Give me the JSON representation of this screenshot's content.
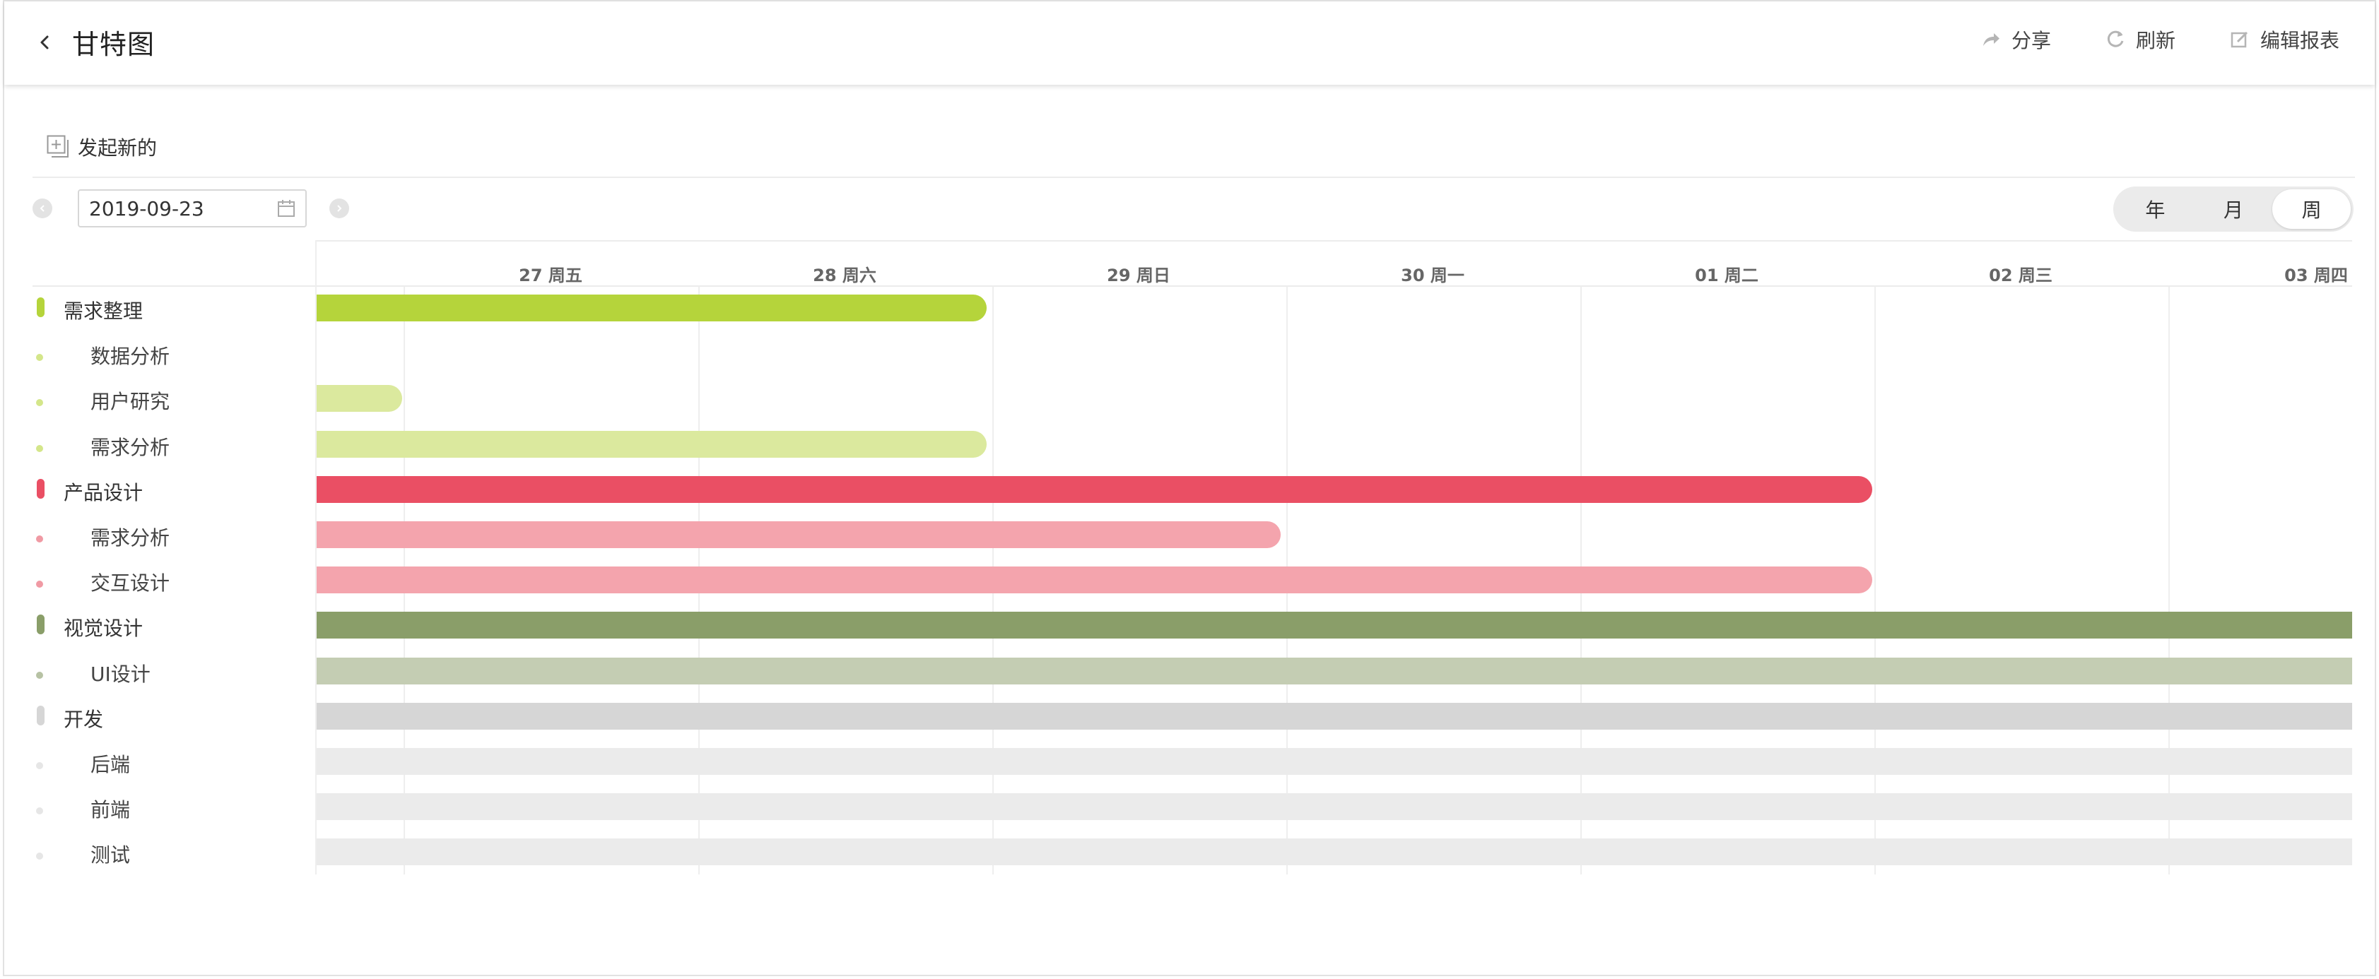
{
  "header": {
    "title": "甘特图",
    "actions": [
      {
        "label": "分享",
        "icon": "share-icon"
      },
      {
        "label": "刷新",
        "icon": "refresh-icon"
      },
      {
        "label": "编辑报表",
        "icon": "edit-icon"
      }
    ]
  },
  "toolbar": {
    "new_label": "发起新的",
    "date_value": "2019-09-23",
    "view_options": [
      "年",
      "月",
      "周"
    ],
    "active_view": "周"
  },
  "timeline": {
    "days": [
      "27 周五",
      "28 周六",
      "29 周日",
      "30 周一",
      "01 周二",
      "02 周三",
      "03 周四"
    ]
  },
  "colors": {
    "需求整理": {
      "main": "#b5d43b",
      "light": "#dbe99e",
      "dot": "#d4e68a"
    },
    "产品设计": {
      "main": "#ea4f64",
      "light": "#f4a4ad",
      "dot": "#f09aa4"
    },
    "视觉设计": {
      "main": "#8a9e69",
      "light": "#c4cdb3",
      "dot": "#b7c2a4"
    },
    "开发": {
      "main": "#d6d6d6",
      "light": "#ebebeb",
      "dot": "#e6e6e6"
    }
  },
  "rows": [
    {
      "label": "需求整理",
      "level": 0,
      "group": "需求整理",
      "start": 0,
      "end": 2.28
    },
    {
      "label": "数据分析",
      "level": 1,
      "group": "需求整理",
      "start": null,
      "end": null
    },
    {
      "label": "用户研究",
      "level": 1,
      "group": "需求整理",
      "start": 0,
      "end": 0.29
    },
    {
      "label": "需求分析",
      "level": 1,
      "group": "需求整理",
      "start": 0,
      "end": 2.28
    },
    {
      "label": "产品设计",
      "level": 0,
      "group": "产品设计",
      "start": 0,
      "end": 5.29
    },
    {
      "label": "需求分析",
      "level": 1,
      "group": "产品设计",
      "start": 0,
      "end": 3.28
    },
    {
      "label": "交互设计",
      "level": 1,
      "group": "产品设计",
      "start": 0,
      "end": 5.29
    },
    {
      "label": "视觉设计",
      "level": 0,
      "group": "视觉设计",
      "start": 0,
      "end": 6.93,
      "open_end": true
    },
    {
      "label": "UI设计",
      "level": 1,
      "group": "视觉设计",
      "start": 0,
      "end": 6.93,
      "open_end": true
    },
    {
      "label": "开发",
      "level": 0,
      "group": "开发",
      "start": 0,
      "end": 6.93,
      "open_end": true
    },
    {
      "label": "后端",
      "level": 1,
      "group": "开发",
      "start": 0,
      "end": 6.93,
      "open_end": true
    },
    {
      "label": "前端",
      "level": 1,
      "group": "开发",
      "start": 0,
      "end": 6.93,
      "open_end": true
    },
    {
      "label": "测试",
      "level": 1,
      "group": "开发",
      "start": 0,
      "end": 6.93,
      "open_end": true
    }
  ]
}
